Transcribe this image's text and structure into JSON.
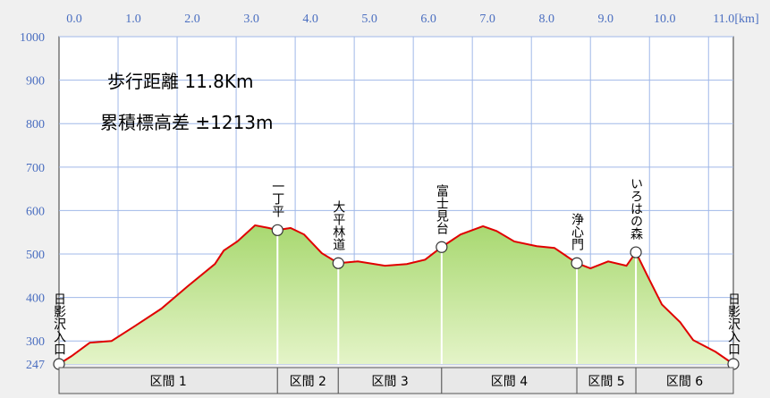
{
  "chart_data": {
    "type": "area",
    "x_unit": "[km]",
    "notes": [
      "歩行距離  11.8Km",
      "累積標高差  ±1213m"
    ],
    "x": [
      0,
      0.21,
      0.52,
      0.89,
      1.27,
      1.73,
      2.18,
      2.64,
      2.79,
      3.02,
      3.32,
      3.55,
      3.7,
      3.92,
      4.15,
      4.45,
      4.73,
      5.06,
      5.52,
      5.89,
      6.2,
      6.48,
      6.8,
      7.18,
      7.41,
      7.71,
      8.09,
      8.39,
      8.77,
      9.0,
      9.3,
      9.61,
      9.77,
      9.98,
      10.21,
      10.52,
      10.74,
      11.12,
      11.42
    ],
    "series": [
      {
        "color": "#e00000",
        "fill": "#a8d870",
        "values": [
          247,
          265,
          296,
          300,
          333,
          374,
          426,
          477,
          508,
          529,
          566,
          560,
          555,
          560,
          545,
          502,
          479,
          483,
          473,
          477,
          487,
          516,
          545,
          564,
          553,
          529,
          518,
          514,
          479,
          467,
          483,
          473,
          504,
          446,
          384,
          343,
          302,
          275,
          247
        ]
      }
    ],
    "waypoints": [
      {
        "name": "日影沢入口",
        "x": 0,
        "y": 247
      },
      {
        "name": "一丁平",
        "x": 3.7,
        "y": 555
      },
      {
        "name": "大平林道",
        "x": 4.73,
        "y": 479
      },
      {
        "name": "富士見台",
        "x": 6.48,
        "y": 516
      },
      {
        "name": "浄心門",
        "x": 8.77,
        "y": 479
      },
      {
        "name": "いろはの森",
        "x": 9.77,
        "y": 504
      },
      {
        "name": "日影沢入口",
        "x": 11.42,
        "y": 247
      }
    ],
    "sections": [
      "区間 1",
      "区間 2",
      "区間 3",
      "区間 4",
      "区間 5",
      "区間 6"
    ],
    "xlim": [
      0,
      11.42
    ],
    "ylim": [
      247,
      1000
    ],
    "xticks": [
      {
        "value": 0,
        "label": "0.0"
      },
      {
        "value": 1,
        "label": "1.0"
      },
      {
        "value": 2,
        "label": "2.0"
      },
      {
        "value": 3,
        "label": "3.0"
      },
      {
        "value": 4,
        "label": "4.0"
      },
      {
        "value": 5,
        "label": "5.0"
      },
      {
        "value": 6,
        "label": "6.0"
      },
      {
        "value": 7,
        "label": "7.0"
      },
      {
        "value": 8,
        "label": "8.0"
      },
      {
        "value": 9,
        "label": "9.0"
      },
      {
        "value": 10,
        "label": "10.0"
      },
      {
        "value": 11,
        "label": "11.0"
      }
    ],
    "yticks": [
      247,
      300,
      400,
      500,
      600,
      700,
      800,
      900,
      1000
    ],
    "grid": true
  }
}
